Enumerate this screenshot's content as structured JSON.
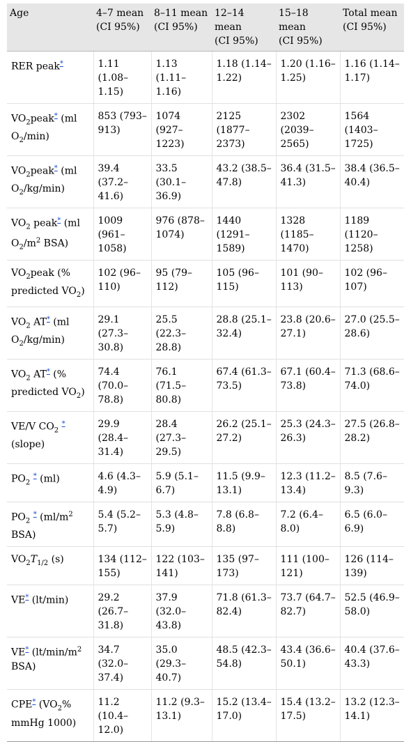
{
  "header": {
    "age": "Age",
    "groups": [
      {
        "line1": "4–7 mean",
        "line2": "(CI 95%)"
      },
      {
        "line1": "8–11 mean",
        "line2": "(CI 95%)"
      },
      {
        "line1": "12–14 mean",
        "line2": "(CI 95%)"
      },
      {
        "line1": "15–18 mean",
        "line2": "(CI 95%)"
      },
      {
        "line1": "Total mean",
        "line2": "(CI 95%)"
      }
    ]
  },
  "footnote_marker": "*",
  "rows": [
    {
      "label": {
        "a": "RER peak",
        "b": ""
      },
      "values": [
        "1.11 (1.08–1.15)",
        "1.13 (1.11–1.16)",
        "1.18 (1.14–1.22)",
        "1.20 (1.16–1.25)",
        "1.16 (1.14–1.17)"
      ]
    },
    {
      "label": {
        "a": "VO",
        "sub1": "2",
        "b": "peak",
        "c": " (ml O",
        "sub2": "2",
        "d": "/min)"
      },
      "values": [
        "853 (793–913)",
        "1074 (927–1223)",
        "2125 (1877–2373)",
        "2302 (2039–2565)",
        "1564 (1403–1725)"
      ]
    },
    {
      "label": {
        "a": "VO",
        "sub1": "2",
        "b": "peak",
        "c": " (ml O",
        "sub2": "2",
        "d": "/kg/min)"
      },
      "values": [
        "39.4 (37.2–41.6)",
        "33.5 (30.1–36.9)",
        "43.2 (38.5–47.8)",
        "36.4 (31.5–41.3)",
        "38.4 (36.5–40.4)"
      ]
    },
    {
      "label": {
        "a": "VO",
        "sub1": "2",
        "b": " peak",
        "c": " (ml O",
        "sub2": "2",
        "d": "/m",
        "sup": "2",
        "e": " BSA)"
      },
      "values": [
        "1009 (961–1058)",
        "976 (878–1074)",
        "1440 (1291–1589)",
        "1328 (1185–1470)",
        "1189 (1120–1258)"
      ]
    },
    {
      "label": {
        "a": "VO",
        "sub1": "2",
        "b": "peak (% predicted VO",
        "sub2": "2",
        "c": ")"
      },
      "values": [
        "102 (96–110)",
        "95 (79–112)",
        "105 (96–115)",
        "101 (90–113)",
        "102 (96–107)"
      ]
    },
    {
      "label": {
        "a": "VO",
        "sub1": "2",
        "b": " AT",
        "c": " (ml O",
        "sub2": "2",
        "d": "/kg/min)"
      },
      "values": [
        "29.1 (27.3–30.8)",
        "25.5 (22.3–28.8)",
        "28.8 (25.1–32.4)",
        "23.8 (20.6–27.1)",
        "27.0 (25.5–28.6)"
      ]
    },
    {
      "label": {
        "a": "VO",
        "sub1": "2",
        "b": " AT",
        "c": " (% predicted VO",
        "sub2": "2",
        "d": ")"
      },
      "values": [
        "74.4 (70.0–78.8)",
        "76.1 (71.5–80.8)",
        "67.4 (61.3–73.5)",
        "67.1 (60.4–73.8)",
        "71.3 (68.6–74.0)"
      ]
    },
    {
      "label": {
        "a": "VE/V CO",
        "sub1": "2",
        "b": " ",
        "c": " (slope)"
      },
      "values": [
        "29.9 (28.4–31.4)",
        "28.4 (27.3–29.5)",
        "26.2 (25.1–27.2)",
        "25.3 (24.3–26.3)",
        "27.5 (26.8–28.2)"
      ]
    },
    {
      "label": {
        "a": "PO",
        "sub1": "2",
        "b": " ",
        "c": " (ml)"
      },
      "values": [
        "4.6 (4.3–4.9)",
        "5.9 (5.1–6.7)",
        "11.5 (9.9–13.1)",
        "12.3 (11.2–13.4)",
        "8.5 (7.6–9.3)"
      ]
    },
    {
      "label": {
        "a": "PO",
        "sub1": "2",
        "b": " ",
        "c": " (ml/m",
        "sup": "2",
        "d": " BSA)"
      },
      "values": [
        "5.4 (5.2–5.7)",
        "5.3 (4.8–5.9)",
        "7.8 (6.8–8.8)",
        "7.2 (6.4–8.0)",
        "6.5 (6.0–6.9)"
      ]
    },
    {
      "label": {
        "a": "VO",
        "sub1": "2",
        "it": "T",
        "sub2": "1/2",
        "b": " (s)"
      },
      "values": [
        "134 (112–155)",
        "122 (103–141)",
        "135 (97–173)",
        "111 (100–121)",
        "126 (114–139)"
      ]
    },
    {
      "label": {
        "a": "VE",
        "b": " (lt/min)"
      },
      "values": [
        "29.2 (26.7–31.8)",
        "37.9 (32.0–43.8)",
        "71.8 (61.3–82.4)",
        "73.7 (64.7–82.7)",
        "52.5 (46.9–58.0)"
      ]
    },
    {
      "label": {
        "a": "VE",
        "b": " (lt/min/m",
        "sup": "2",
        "c": " BSA)"
      },
      "values": [
        "34.7 (32.0–37.4)",
        "35.0 (29.3–40.7)",
        "48.5 (42.3–54.8)",
        "43.4 (36.6–50.1)",
        "40.4 (37.6–43.3)"
      ]
    },
    {
      "label": {
        "a": "CPE",
        "b": " (VO",
        "sub1": "2",
        "c": "% mmHg 1000)"
      },
      "values": [
        "11.2 (10.4–12.0)",
        "11.2 (9.3–13.1)",
        "15.2 (13.4–17.0)",
        "15.4 (13.2–17.5)",
        "13.2 (12.3–14.1)"
      ]
    }
  ]
}
